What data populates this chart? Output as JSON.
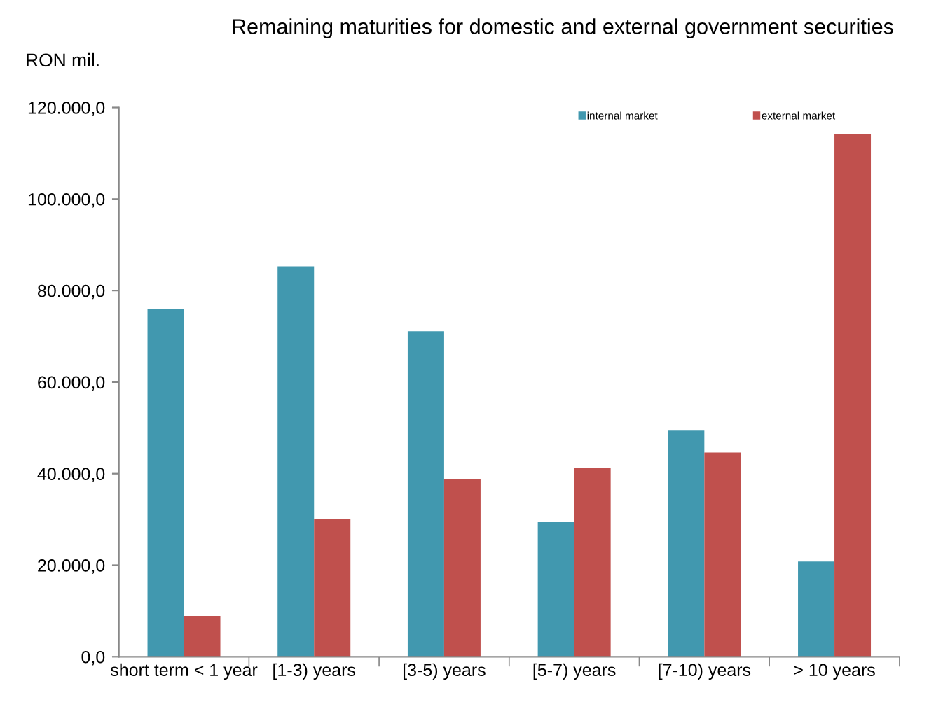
{
  "chart_data": {
    "type": "bar",
    "title": "Remaining maturities for domestic and external government securities",
    "ylabel": "RON mil.",
    "categories": [
      "short term < 1 year",
      "[1-3) years",
      "[3-5) years",
      "[5-7) years",
      "[7-10) years",
      "> 10 years"
    ],
    "series": [
      {
        "name": "internal market",
        "color": "#4198af",
        "values": [
          76000,
          85300,
          71100,
          29400,
          49400,
          20800
        ]
      },
      {
        "name": "external market",
        "color": "#c0504d",
        "values": [
          8900,
          30000,
          38900,
          41300,
          44600,
          114100
        ]
      }
    ],
    "ylim": [
      0,
      120000
    ],
    "yticks": [
      {
        "value": 0,
        "label": "0,0"
      },
      {
        "value": 20000,
        "label": "20.000,0"
      },
      {
        "value": 40000,
        "label": "40.000,0"
      },
      {
        "value": 60000,
        "label": "60.000,0"
      },
      {
        "value": 80000,
        "label": "80.000,0"
      },
      {
        "value": 100000,
        "label": "100.000,0"
      },
      {
        "value": 120000,
        "label": "120.000,0"
      }
    ],
    "grid": false,
    "legend": "top right"
  }
}
